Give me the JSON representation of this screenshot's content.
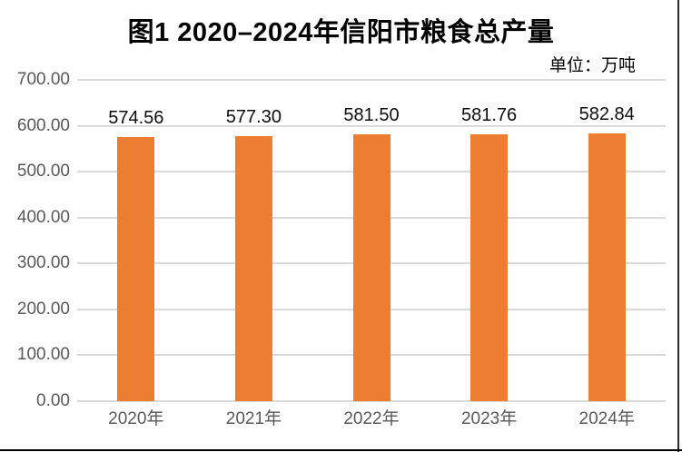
{
  "page": {
    "title": "图1 2020–2024年信阳市粮食总产量",
    "unit_label": "单位：万吨"
  },
  "chart_data": {
    "type": "bar",
    "title": "图1 2020–2024年信阳市粮食总产量",
    "unit": "单位：万吨",
    "categories": [
      "2020年",
      "2021年",
      "2022年",
      "2023年",
      "2024年"
    ],
    "values": [
      574.56,
      577.3,
      581.5,
      581.76,
      582.84
    ],
    "data_labels": [
      "574.56",
      "577.30",
      "581.50",
      "581.76",
      "582.84"
    ],
    "xlabel": "",
    "ylabel": "",
    "ylim": [
      0,
      700
    ],
    "ytick_step": 100,
    "ytick_labels": [
      "0.00",
      "100.00",
      "200.00",
      "300.00",
      "400.00",
      "500.00",
      "600.00",
      "700.00"
    ],
    "grid": true,
    "legend_position": "none",
    "colors": {
      "bar": "#ED7D31",
      "gridline": "#D9D9D9",
      "axis_label": "#595959",
      "data_label": "#0D0D0D",
      "title": "#000000"
    }
  }
}
